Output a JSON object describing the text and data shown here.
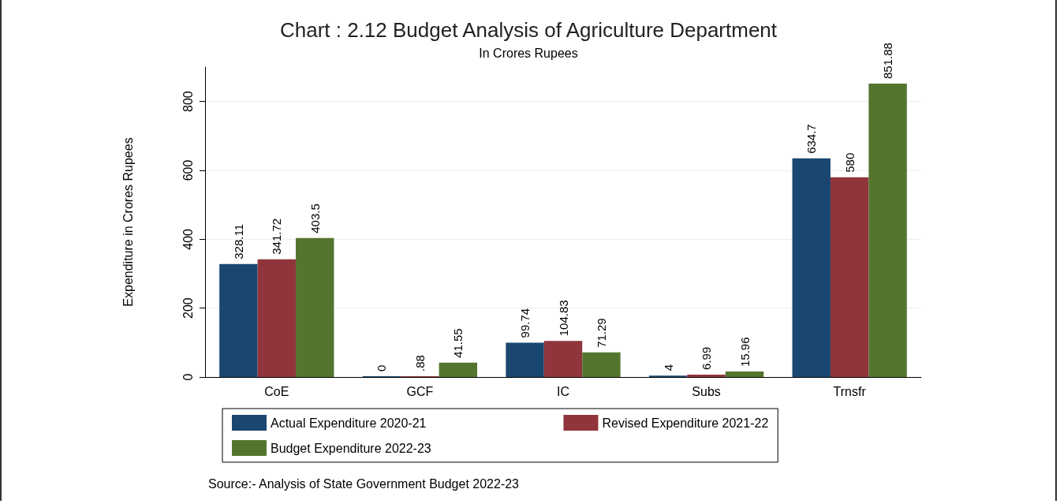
{
  "chart_data": {
    "type": "bar",
    "title": "Chart : 2.12 Budget Analysis of Agriculture Department",
    "subtitle": "In Crores Rupees",
    "ylabel": "Expenditure in Crores Rupees",
    "categories": [
      "CoE",
      "GCF",
      "IC",
      "Subs",
      "Trnsfr"
    ],
    "series": [
      {
        "name": "Actual Expenditure 2020-21",
        "color": "#1a476f",
        "values": [
          328.11,
          0,
          99.74,
          4,
          634.7
        ],
        "value_labels": [
          "328.11",
          "0",
          "99.74",
          "4",
          "634.7"
        ]
      },
      {
        "name": "Revised Expenditure 2021-22",
        "color": "#90353b",
        "values": [
          341.72,
          0.88,
          104.83,
          6.99,
          580
        ],
        "value_labels": [
          "341.72",
          ".88",
          "104.83",
          "6.99",
          "580"
        ]
      },
      {
        "name": "Budget Expenditure 2022-23",
        "color": "#55752f",
        "values": [
          403.5,
          41.55,
          71.29,
          15.96,
          851.88
        ],
        "value_labels": [
          "403.5",
          "41.55",
          "71.29",
          "15.96",
          "851.88"
        ]
      }
    ],
    "ylim": [
      0,
      900
    ],
    "yticks": [
      0,
      200,
      400,
      600,
      800
    ],
    "grid": "y",
    "legend": "bottom",
    "annotations": [
      "Source:- Analysis of State Government Budget 2022-23"
    ]
  }
}
